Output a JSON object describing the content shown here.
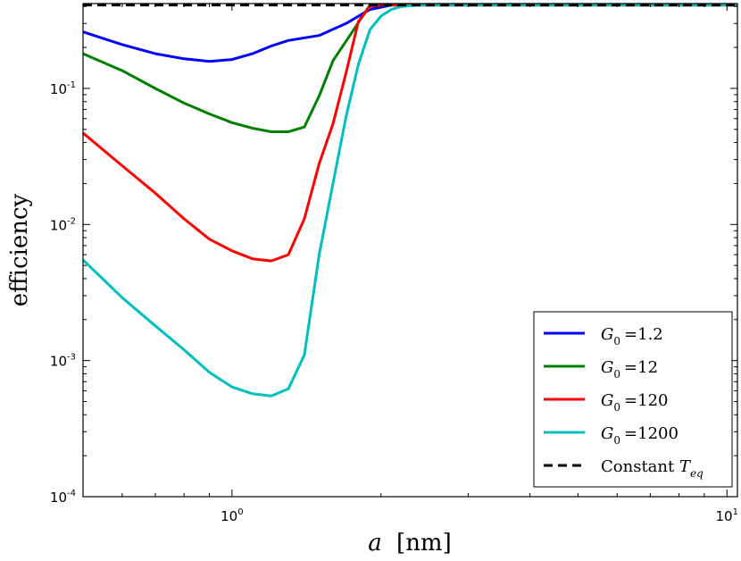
{
  "chart_data": {
    "type": "line",
    "xscale": "log",
    "yscale": "log",
    "xlim": [
      0.5,
      10.5
    ],
    "ylim": [
      0.0001,
      0.42
    ],
    "xlabel": {
      "var": "a",
      "unit": "[nm]"
    },
    "ylabel": "efficiency",
    "x_ticks": [
      {
        "value": 1,
        "base": "10",
        "exp": "0"
      },
      {
        "value": 10,
        "base": "10",
        "exp": "1"
      }
    ],
    "y_ticks": [
      {
        "value": 0.0001,
        "base": "10",
        "exp": "-4"
      },
      {
        "value": 0.001,
        "base": "10",
        "exp": "-3"
      },
      {
        "value": 0.01,
        "base": "10",
        "exp": "-2"
      },
      {
        "value": 0.1,
        "base": "10",
        "exp": "-1"
      }
    ],
    "grid": false,
    "legend_position": "lower-right",
    "series": [
      {
        "name": "G0 = 1.2",
        "legend": {
          "var": "G",
          "sub": "0",
          "eq": "=1.2"
        },
        "color": "#0000ff",
        "x": [
          0.5,
          0.6,
          0.7,
          0.8,
          0.9,
          1.0,
          1.1,
          1.2,
          1.3,
          1.5,
          1.7,
          1.9,
          2.1,
          2.3,
          10.5
        ],
        "y": [
          0.26,
          0.21,
          0.18,
          0.165,
          0.158,
          0.163,
          0.18,
          0.205,
          0.225,
          0.245,
          0.3,
          0.38,
          0.41,
          0.41,
          0.41
        ]
      },
      {
        "name": "G0 = 12",
        "legend": {
          "var": "G",
          "sub": "0",
          "eq": "=12"
        },
        "color": "#008000",
        "x": [
          0.5,
          0.6,
          0.7,
          0.8,
          0.9,
          1.0,
          1.1,
          1.2,
          1.3,
          1.4,
          1.5,
          1.6,
          1.75,
          1.9,
          2.1,
          10.5
        ],
        "y": [
          0.18,
          0.135,
          0.1,
          0.078,
          0.065,
          0.056,
          0.051,
          0.048,
          0.048,
          0.052,
          0.088,
          0.16,
          0.26,
          0.41,
          0.41,
          0.41
        ]
      },
      {
        "name": "G0 = 120",
        "legend": {
          "var": "G",
          "sub": "0",
          "eq": "=120"
        },
        "color": "#ff0000",
        "x": [
          0.5,
          0.6,
          0.7,
          0.8,
          0.9,
          1.0,
          1.1,
          1.2,
          1.3,
          1.4,
          1.5,
          1.6,
          1.7,
          1.8,
          1.9,
          2.0,
          2.2,
          10.5
        ],
        "y": [
          0.047,
          0.027,
          0.017,
          0.011,
          0.0078,
          0.0064,
          0.0056,
          0.0054,
          0.006,
          0.011,
          0.028,
          0.055,
          0.13,
          0.31,
          0.4,
          0.41,
          0.41,
          0.41
        ]
      },
      {
        "name": "G0 = 1200",
        "legend": {
          "var": "G",
          "sub": "0",
          "eq": "=1200"
        },
        "color": "#00bfbf",
        "x": [
          0.5,
          0.6,
          0.7,
          0.8,
          0.9,
          1.0,
          1.1,
          1.2,
          1.3,
          1.4,
          1.5,
          1.6,
          1.7,
          1.8,
          1.9,
          2.0,
          2.1,
          2.2,
          2.4,
          10.5
        ],
        "y": [
          0.0055,
          0.0029,
          0.0018,
          0.0012,
          0.00082,
          0.00064,
          0.00057,
          0.00055,
          0.00062,
          0.0011,
          0.006,
          0.02,
          0.062,
          0.15,
          0.27,
          0.34,
          0.38,
          0.4,
          0.41,
          0.41
        ]
      },
      {
        "name": "Constant Teq",
        "legend": {
          "text": "Constant ",
          "var": "T",
          "sub": "eq"
        },
        "color": "#000000",
        "dashed": true,
        "x": [
          0.5,
          10.5
        ],
        "y": [
          0.41,
          0.41
        ]
      }
    ]
  }
}
